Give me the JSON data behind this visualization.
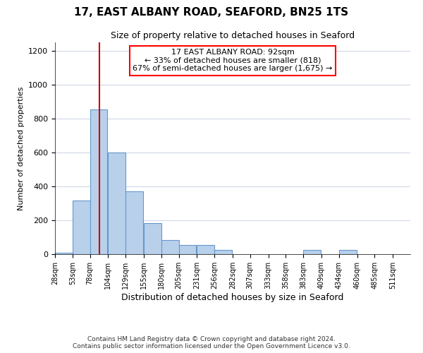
{
  "title1": "17, EAST ALBANY ROAD, SEAFORD, BN25 1TS",
  "title2": "Size of property relative to detached houses in Seaford",
  "xlabel": "Distribution of detached houses by size in Seaford",
  "ylabel": "Number of detached properties",
  "bar_color": "#b8d0ea",
  "bar_edge_color": "#6699cc",
  "annotation_text": "17 EAST ALBANY ROAD: 92sqm\n← 33% of detached houses are smaller (818)\n67% of semi-detached houses are larger (1,675) →",
  "vline_x": 92,
  "vline_color": "#cc0000",
  "footer1": "Contains HM Land Registry data © Crown copyright and database right 2024.",
  "footer2": "Contains public sector information licensed under the Open Government Licence v3.0.",
  "bin_edges": [
    28,
    53,
    78,
    104,
    129,
    155,
    180,
    205,
    231,
    256,
    282,
    307,
    333,
    358,
    383,
    409,
    434,
    460,
    485,
    511,
    536
  ],
  "bin_counts": [
    10,
    315,
    855,
    600,
    370,
    185,
    85,
    55,
    55,
    25,
    0,
    0,
    0,
    0,
    25,
    0,
    25,
    0,
    0,
    0,
    0
  ],
  "ylim": [
    0,
    1250
  ],
  "yticks": [
    0,
    200,
    400,
    600,
    800,
    1000,
    1200
  ],
  "background_color": "#ffffff",
  "grid_color": "#d0d8e8"
}
